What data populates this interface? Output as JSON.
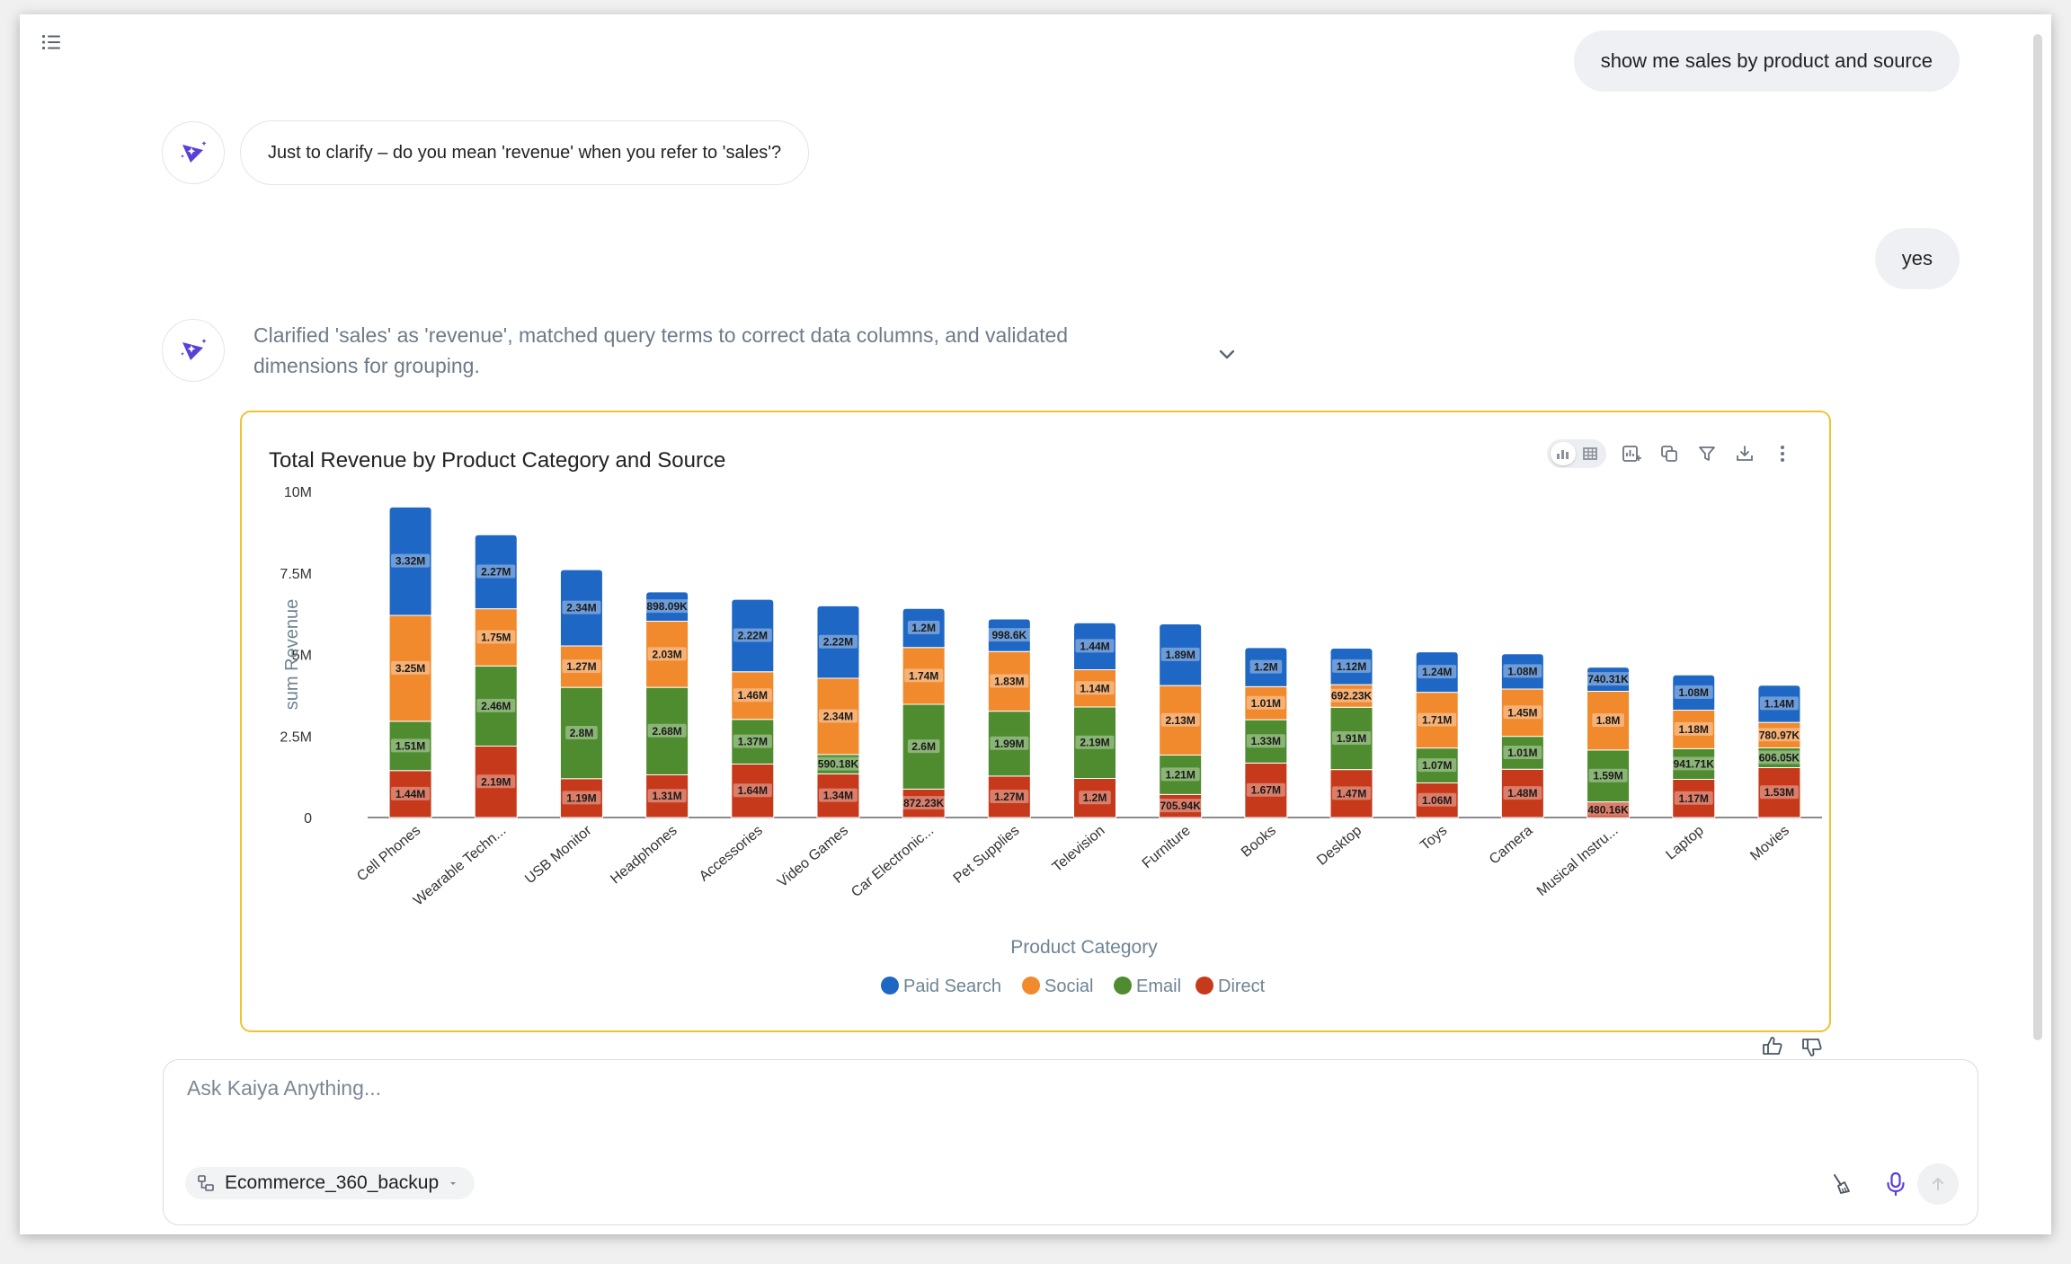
{
  "conversation": {
    "user_msg_1": "show me sales by product and source",
    "bot_msg_1": "Just to clarify – do you mean 'revenue' when you refer to 'sales'?",
    "user_msg_2": "yes",
    "bot_reasoning": "Clarified 'sales' as 'revenue', matched query terms to correct data columns, and validated dimensions for grouping."
  },
  "input": {
    "placeholder": "Ask Kaiya Anything...",
    "value": "",
    "dataset": "Ecommerce_360_backup"
  },
  "colors": {
    "paid_search": "#1f67c4",
    "social": "#f1892d",
    "email": "#4e8c2f",
    "direct": "#c7391b",
    "card_border": "#f2c230",
    "avatar_accent": "#5b3fd9"
  },
  "chart_data": {
    "type": "bar",
    "stacked": true,
    "title": "Total Revenue by Product Category and Source",
    "xlabel": "Product Category",
    "ylabel": "sum Revenue",
    "ylim": [
      0,
      10000000
    ],
    "yticks": [
      0,
      2500000,
      5000000,
      7500000,
      10000000
    ],
    "ytick_labels": [
      "0",
      "2.5M",
      "5M",
      "7.5M",
      "10M"
    ],
    "legend_position": "bottom-center",
    "categories": [
      "Cell Phones",
      "Wearable Techn...",
      "USB Monitor",
      "Headphones",
      "Accessories",
      "Video Games",
      "Car Electronic...",
      "Pet Supplies",
      "Television",
      "Furniture",
      "Books",
      "Desktop",
      "Toys",
      "Camera",
      "Musical Instru...",
      "Laptop",
      "Movies"
    ],
    "series": [
      {
        "name": "Direct",
        "color_key": "direct",
        "values": [
          1440000,
          2190000,
          1190000,
          1310000,
          1640000,
          1340000,
          872230,
          1270000,
          1200000,
          705940,
          1670000,
          1470000,
          1060000,
          1480000,
          480160,
          1170000,
          1530000
        ],
        "labels": [
          "1.44M",
          "2.19M",
          "1.19M",
          "1.31M",
          "1.64M",
          "1.34M",
          "872.23K",
          "1.27M",
          "1.2M",
          "705.94K",
          "1.67M",
          "1.47M",
          "1.06M",
          "1.48M",
          "480.16K",
          "1.17M",
          "1.53M"
        ]
      },
      {
        "name": "Email",
        "color_key": "email",
        "values": [
          1510000,
          2460000,
          2800000,
          2680000,
          1370000,
          590180,
          2600000,
          1990000,
          2190000,
          1210000,
          1330000,
          1910000,
          1070000,
          1010000,
          1590000,
          941710,
          606050
        ],
        "labels": [
          "1.51M",
          "2.46M",
          "2.8M",
          "2.68M",
          "1.37M",
          "590.18K",
          "2.6M",
          "1.99M",
          "2.19M",
          "1.21M",
          "1.33M",
          "1.91M",
          "1.07M",
          "1.01M",
          "1.59M",
          "941.71K",
          "606.05K"
        ]
      },
      {
        "name": "Social",
        "color_key": "social",
        "values": [
          3250000,
          1750000,
          1270000,
          2030000,
          1460000,
          2340000,
          1740000,
          1830000,
          1140000,
          2130000,
          1010000,
          692230,
          1710000,
          1450000,
          1800000,
          1180000,
          780970
        ],
        "labels": [
          "3.25M",
          "1.75M",
          "1.27M",
          "2.03M",
          "1.46M",
          "2.34M",
          "1.74M",
          "1.83M",
          "1.14M",
          "2.13M",
          "1.01M",
          "692.23K",
          "1.71M",
          "1.45M",
          "1.8M",
          "1.18M",
          "780.97K"
        ]
      },
      {
        "name": "Paid Search",
        "color_key": "paid_search",
        "values": [
          3320000,
          2270000,
          2340000,
          898090,
          2220000,
          2220000,
          1200000,
          998600,
          1440000,
          1890000,
          1200000,
          1120000,
          1240000,
          1080000,
          740310,
          1080000,
          1140000
        ],
        "labels": [
          "3.32M",
          "2.27M",
          "2.34M",
          "898.09K",
          "2.22M",
          "2.22M",
          "1.2M",
          "998.6K",
          "1.44M",
          "1.89M",
          "1.2M",
          "1.12M",
          "1.24M",
          "1.08M",
          "740.31K",
          "1.08M",
          "1.14M"
        ]
      }
    ],
    "legend": [
      {
        "name": "Paid Search",
        "color_key": "paid_search"
      },
      {
        "name": "Social",
        "color_key": "social"
      },
      {
        "name": "Email",
        "color_key": "email"
      },
      {
        "name": "Direct",
        "color_key": "direct"
      }
    ]
  }
}
